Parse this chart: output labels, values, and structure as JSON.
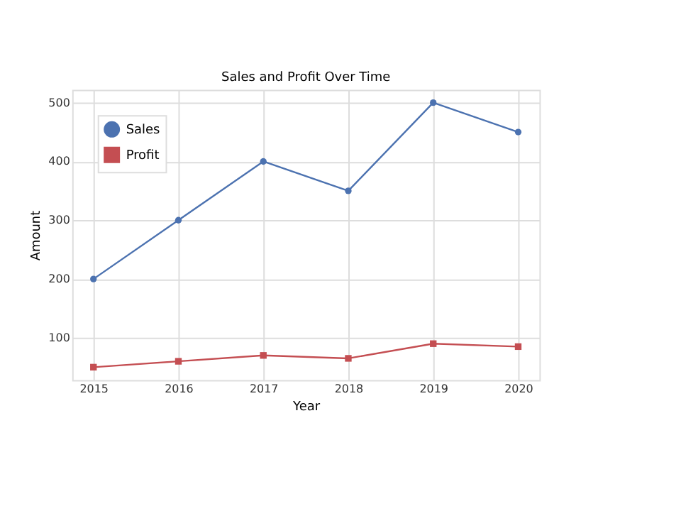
{
  "chart_data": {
    "type": "line",
    "title": "Sales and Profit Over Time",
    "xlabel": "Year",
    "ylabel": "Amount",
    "x": [
      2015,
      2016,
      2017,
      2018,
      2019,
      2020
    ],
    "series": [
      {
        "name": "Sales",
        "color": "#4c72b0",
        "values": [
          200,
          300,
          400,
          350,
          500,
          450
        ],
        "marker": "circle"
      },
      {
        "name": "Profit",
        "color": "#c44e52",
        "values": [
          50,
          60,
          70,
          65,
          90,
          85
        ],
        "marker": "square"
      }
    ],
    "xlim": [
      2014.75,
      2020.25
    ],
    "xticks": [
      2015,
      2016,
      2017,
      2018,
      2019,
      2020
    ],
    "ylim": [
      28,
      522
    ],
    "yticks": [
      100,
      200,
      300,
      400,
      500
    ],
    "grid": true,
    "legend": "top left",
    "line_style": "solid"
  }
}
